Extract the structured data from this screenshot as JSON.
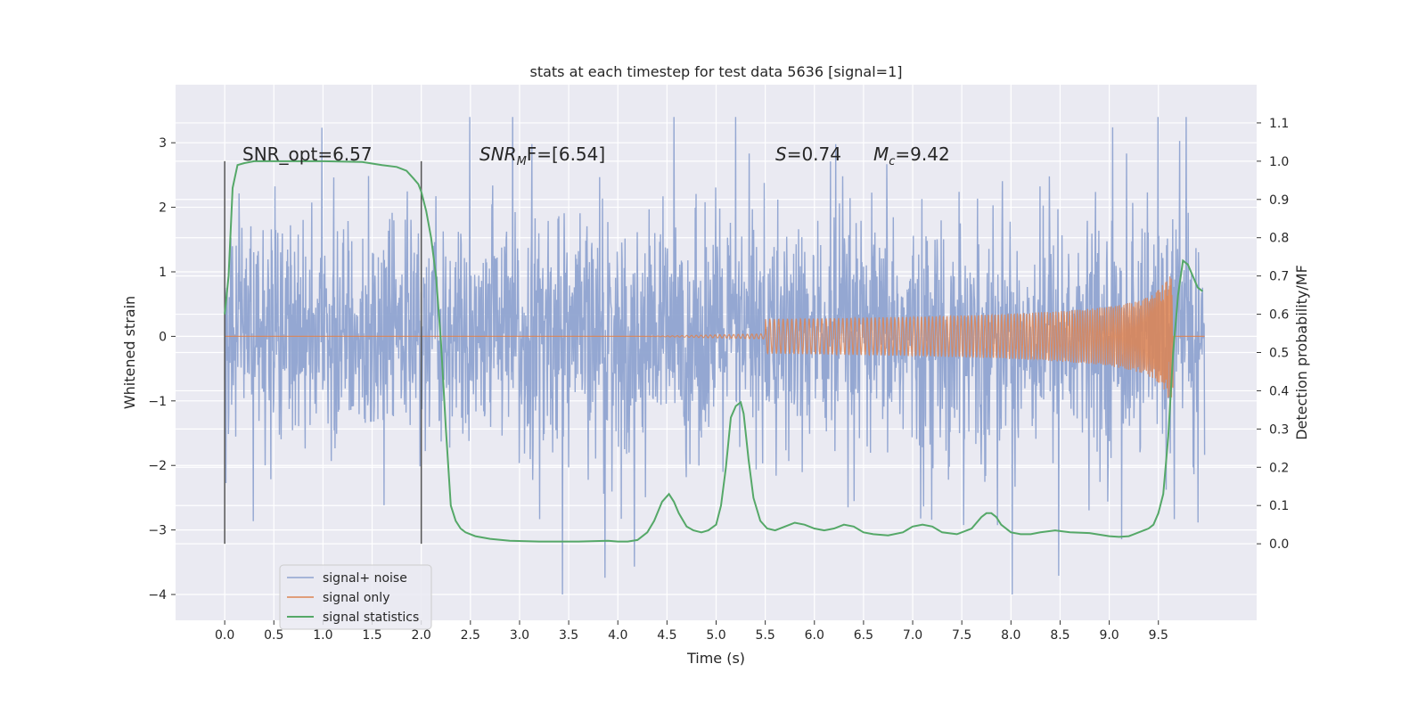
{
  "chart_data": {
    "type": "line",
    "title": "stats at each timestep for test data 5636 [signal=1]",
    "xlabel": "Time (s)",
    "ylabel": "Whitened strain",
    "y2label": "Detection probability/MF",
    "xlim": [
      -0.5,
      10.5
    ],
    "ylim": [
      -4.4,
      3.9
    ],
    "y2lim": [
      -0.2,
      1.2
    ],
    "x_ticks": [
      "0.0",
      "0.5",
      "1.0",
      "1.5",
      "2.0",
      "2.5",
      "3.0",
      "3.5",
      "4.0",
      "4.5",
      "5.0",
      "5.5",
      "6.0",
      "6.5",
      "7.0",
      "7.5",
      "8.0",
      "8.5",
      "9.0",
      "9.5"
    ],
    "y_ticks": [
      "3",
      "2",
      "1",
      "0",
      "−1",
      "−2",
      "−3",
      "−4"
    ],
    "y2_ticks": [
      "1.1",
      "1.0",
      "0.9",
      "0.8",
      "0.7",
      "0.6",
      "0.5",
      "0.4",
      "0.3",
      "0.2",
      "0.1",
      "0.0"
    ],
    "grid": true,
    "legend_position": "lower-left",
    "colors": {
      "noise": "#8fa3d0",
      "signal": "#dd8452",
      "statistics": "#55a868",
      "background": "#eaeaf2",
      "vline": "#555555"
    },
    "annotations": {
      "snr_opt": "SNR_opt=6.57",
      "snr_mf_main": "SNR",
      "snr_mf_sub": "M",
      "snr_mf_rest": "F=[6.54]",
      "s_main": "S",
      "s_rest": "=0.74",
      "mc_main": "M",
      "mc_sub": "c",
      "mc_rest": "=9.42"
    },
    "vertical_lines_x": [
      0.0,
      2.0
    ],
    "series": [
      {
        "name": "signal+ noise",
        "kind": "noise",
        "x_range": [
          0.0,
          9.97
        ],
        "envelope_typical": [
          -1.6,
          1.5
        ],
        "extremes": [
          -4.0,
          3.4
        ]
      },
      {
        "name": "signal only",
        "kind": "chirp",
        "x_range": [
          0.0,
          9.97
        ],
        "onset": 5.5,
        "merger": 9.65,
        "peak_amplitude": 0.95
      },
      {
        "name": "signal statistics",
        "kind": "curve",
        "axis": "right",
        "x": [
          0.0,
          0.04,
          0.08,
          0.13,
          0.2,
          0.3,
          0.5,
          1.0,
          1.4,
          1.6,
          1.75,
          1.85,
          1.92,
          1.97,
          2.0,
          2.05,
          2.1,
          2.15,
          2.2,
          2.25,
          2.3,
          2.35,
          2.4,
          2.45,
          2.55,
          2.7,
          2.9,
          3.2,
          3.6,
          3.9,
          4.0,
          4.1,
          4.2,
          4.3,
          4.37,
          4.45,
          4.52,
          4.57,
          4.62,
          4.7,
          4.77,
          4.85,
          4.92,
          5.0,
          5.05,
          5.1,
          5.15,
          5.2,
          5.25,
          5.28,
          5.33,
          5.38,
          5.45,
          5.52,
          5.6,
          5.7,
          5.8,
          5.9,
          6.0,
          6.1,
          6.2,
          6.3,
          6.4,
          6.5,
          6.6,
          6.75,
          6.9,
          7.0,
          7.1,
          7.2,
          7.3,
          7.45,
          7.6,
          7.7,
          7.75,
          7.8,
          7.85,
          7.9,
          8.0,
          8.1,
          8.2,
          8.3,
          8.45,
          8.6,
          8.8,
          9.0,
          9.1,
          9.2,
          9.3,
          9.4,
          9.45,
          9.5,
          9.55,
          9.6,
          9.65,
          9.7,
          9.75,
          9.8,
          9.85,
          9.9,
          9.95
        ],
        "y": [
          0.6,
          0.7,
          0.93,
          0.99,
          0.995,
          1.0,
          1.0,
          1.0,
          0.998,
          0.99,
          0.985,
          0.975,
          0.955,
          0.94,
          0.92,
          0.87,
          0.8,
          0.7,
          0.53,
          0.3,
          0.1,
          0.06,
          0.04,
          0.03,
          0.02,
          0.013,
          0.008,
          0.006,
          0.006,
          0.008,
          0.006,
          0.006,
          0.01,
          0.03,
          0.06,
          0.11,
          0.13,
          0.11,
          0.08,
          0.045,
          0.035,
          0.03,
          0.035,
          0.05,
          0.1,
          0.2,
          0.33,
          0.36,
          0.37,
          0.34,
          0.22,
          0.12,
          0.06,
          0.04,
          0.035,
          0.045,
          0.055,
          0.05,
          0.04,
          0.035,
          0.04,
          0.05,
          0.045,
          0.03,
          0.025,
          0.022,
          0.03,
          0.045,
          0.05,
          0.045,
          0.03,
          0.025,
          0.04,
          0.07,
          0.08,
          0.08,
          0.07,
          0.05,
          0.03,
          0.025,
          0.025,
          0.03,
          0.035,
          0.03,
          0.028,
          0.02,
          0.018,
          0.02,
          0.03,
          0.04,
          0.05,
          0.08,
          0.13,
          0.28,
          0.5,
          0.65,
          0.74,
          0.73,
          0.7,
          0.67,
          0.66
        ]
      }
    ]
  }
}
